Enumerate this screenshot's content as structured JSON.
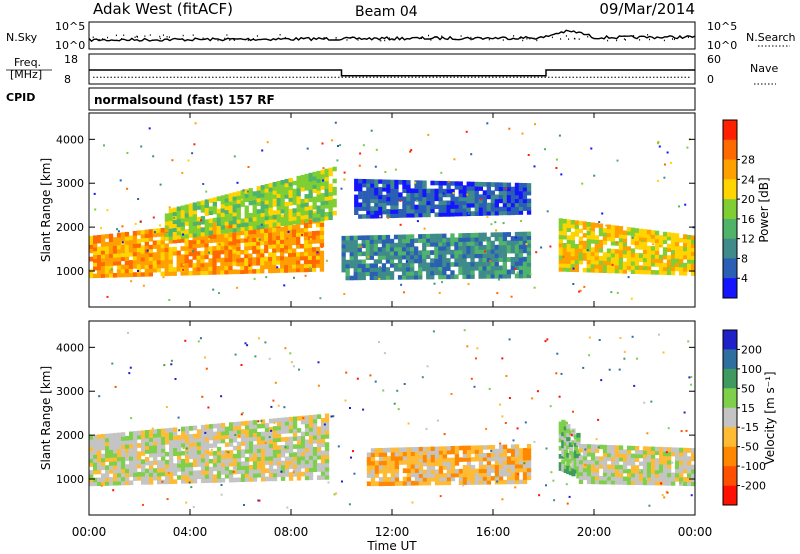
{
  "header": {
    "station": "Adak West (fitACF)",
    "beam": "Beam 04",
    "date": "09/Mar/2014"
  },
  "side_labels": {
    "nsky": "N.Sky",
    "nsearch": "N.Search",
    "freq_line1": "Freq.",
    "freq_line2": "[MHz]",
    "nave": "Nave",
    "cpid": "CPID"
  },
  "cpid_text": "normalsound (fast) 157 RF",
  "noise_panel": {
    "left_ticks": [
      "10^5",
      "10^0"
    ],
    "right_ticks": [
      "10^5",
      "10^0"
    ]
  },
  "freq_panel": {
    "left_ticks": [
      "18",
      "8"
    ],
    "right_ticks": [
      "60",
      "0"
    ],
    "freq_values_mhz": [
      [
        0.0,
        12.6
      ],
      [
        10.0,
        10.4
      ],
      [
        18.1,
        12.6
      ],
      [
        24.0,
        12.6
      ]
    ],
    "nave_values": [
      [
        0.0,
        11
      ],
      [
        10.0,
        11
      ],
      [
        18.1,
        11
      ],
      [
        24.0,
        11
      ]
    ]
  },
  "panel_power": {
    "ylabel": "Slant Range [km]",
    "yticks": [
      "1000",
      "2000",
      "3000",
      "4000"
    ],
    "colorbar_label": "Power [dB]",
    "colorbar_ticks": [
      "4",
      "8",
      "12",
      "16",
      "20",
      "24",
      "28"
    ],
    "colorbar_colors": [
      "#1414ff",
      "#2a5fb5",
      "#3f8a8a",
      "#4fb36a",
      "#7fcf34",
      "#ffd400",
      "#ffa000",
      "#ff6a00",
      "#ff2000"
    ]
  },
  "panel_velocity": {
    "ylabel": "Slant Range [km]",
    "yticks": [
      "1000",
      "2000",
      "3000",
      "4000"
    ],
    "colorbar_label": "Velocity [m s⁻¹]",
    "colorbar_ticks": [
      "200",
      "100",
      "50",
      "15",
      "-15",
      "-50",
      "-100",
      "-200"
    ],
    "colorbar_colors": [
      "#2020c8",
      "#2f6fa0",
      "#3f9a60",
      "#7ed04a",
      "#c4c4c4",
      "#ffbb33",
      "#ff8800",
      "#ff5000",
      "#ff1000"
    ]
  },
  "x_axis": {
    "ticks": [
      "00:00",
      "04:00",
      "08:00",
      "12:00",
      "16:00",
      "20:00",
      "00:00"
    ],
    "label": "Time UT"
  },
  "chart_data": {
    "type": "heatmap",
    "x_range_hours": [
      0,
      24
    ],
    "y_range_km": [
      180,
      4600
    ],
    "power_regions": [
      {
        "t": [
          0.0,
          9.3
        ],
        "r_lo": [
          850,
          1000
        ],
        "r_hi": [
          1800,
          2400
        ],
        "power_db": 28
      },
      {
        "t": [
          3.0,
          9.8
        ],
        "r_lo": [
          1700,
          2200
        ],
        "r_hi": [
          2400,
          3400
        ],
        "power_db": 20
      },
      {
        "t": [
          10.0,
          17.5
        ],
        "r_lo": [
          800,
          850
        ],
        "r_hi": [
          1800,
          1900
        ],
        "power_db": 12
      },
      {
        "t": [
          10.5,
          17.5
        ],
        "r_lo": [
          2200,
          2300
        ],
        "r_hi": [
          3100,
          3000
        ],
        "power_db": 8
      },
      {
        "t": [
          18.6,
          24.0
        ],
        "r_lo": [
          1000,
          900
        ],
        "r_hi": [
          2200,
          1800
        ],
        "power_db": 24
      }
    ],
    "velocity_regions": [
      {
        "t": [
          0.0,
          9.5
        ],
        "r_lo": [
          850,
          1000
        ],
        "r_hi": [
          2000,
          2500
        ],
        "velocity_ms": 0
      },
      {
        "t": [
          11.0,
          17.5
        ],
        "r_lo": [
          850,
          900
        ],
        "r_hi": [
          1700,
          1800
        ],
        "velocity_ms": -40
      },
      {
        "t": [
          18.6,
          19.4
        ],
        "r_lo": [
          1200,
          1000
        ],
        "r_hi": [
          2400,
          2000
        ],
        "velocity_ms": 30
      },
      {
        "t": [
          19.4,
          24.0
        ],
        "r_lo": [
          900,
          850
        ],
        "r_hi": [
          1800,
          1700
        ],
        "velocity_ms": 0
      }
    ]
  }
}
